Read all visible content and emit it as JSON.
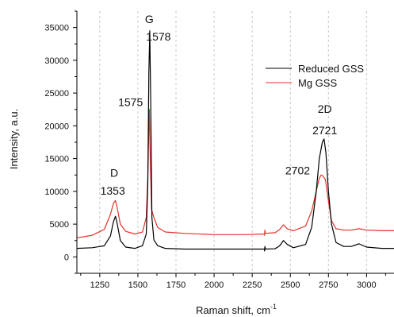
{
  "chart_data": {
    "type": "line",
    "title": "",
    "xlabel": "Raman shift, cm",
    "xlabel_superscript": "-1",
    "ylabel": "Intensity, a.u.",
    "xlim": [
      1100,
      3180
    ],
    "ylim": [
      -2500,
      37500
    ],
    "x_ticks": [
      1250,
      1500,
      1750,
      2000,
      2250,
      2500,
      2750,
      3000
    ],
    "y_ticks": [
      0,
      5000,
      10000,
      15000,
      20000,
      25000,
      30000,
      35000
    ],
    "grid": "vertical dashed",
    "legend_position": "top-right",
    "series": [
      {
        "name": "Reduced GSS",
        "color": "#000000",
        "x": [
          1100,
          1200,
          1280,
          1320,
          1340,
          1353,
          1365,
          1385,
          1420,
          1480,
          1530,
          1555,
          1565,
          1572,
          1578,
          1584,
          1592,
          1605,
          1630,
          1680,
          1800,
          2000,
          2200,
          2330,
          2331,
          2333,
          2336,
          2400,
          2430,
          2455,
          2480,
          2520,
          2600,
          2640,
          2670,
          2690,
          2710,
          2721,
          2733,
          2750,
          2770,
          2800,
          2850,
          2900,
          2950,
          3000,
          3100,
          3180
        ],
        "values": [
          1300,
          1400,
          1700,
          3200,
          5400,
          6200,
          5000,
          2500,
          1500,
          1300,
          1700,
          3500,
          11000,
          28000,
          34500,
          24000,
          6000,
          2600,
          1700,
          1300,
          1200,
          1200,
          1200,
          1200,
          900,
          1600,
          1200,
          1250,
          1700,
          2500,
          1900,
          1400,
          1900,
          4500,
          10000,
          15000,
          17500,
          18000,
          16000,
          10000,
          5000,
          2200,
          1600,
          1600,
          2000,
          1500,
          1300,
          1300
        ]
      },
      {
        "name": "Mg GSS",
        "color": "#e8302a",
        "x": [
          1100,
          1200,
          1280,
          1320,
          1340,
          1353,
          1365,
          1385,
          1420,
          1480,
          1530,
          1555,
          1565,
          1572,
          1575,
          1581,
          1590,
          1605,
          1630,
          1680,
          1800,
          2000,
          2200,
          2330,
          2331,
          2333,
          2336,
          2400,
          2430,
          2455,
          2480,
          2520,
          2600,
          2640,
          2670,
          2690,
          2702,
          2712,
          2730,
          2750,
          2770,
          2800,
          2850,
          2900,
          2950,
          3000,
          3100,
          3180
        ],
        "values": [
          2900,
          3300,
          4200,
          6500,
          8200,
          8600,
          7400,
          5000,
          3900,
          3500,
          3800,
          6000,
          12000,
          20000,
          22500,
          15000,
          7200,
          6000,
          4500,
          3800,
          3600,
          3400,
          3400,
          3500,
          3300,
          4100,
          3600,
          3700,
          4200,
          4900,
          4300,
          4000,
          4700,
          7000,
          10000,
          12000,
          12500,
          12400,
          11800,
          8500,
          5500,
          4300,
          4100,
          4100,
          4300,
          4100,
          4000,
          4000
        ]
      }
    ],
    "annotations": [
      {
        "text": "G",
        "x": 1575,
        "y": 35700
      },
      {
        "text": "1578",
        "x": 1635,
        "y": 33000
      },
      {
        "text": "1575",
        "x": 1452,
        "y": 23000
      },
      {
        "text": "D",
        "x": 1345,
        "y": 12200
      },
      {
        "text": "1353",
        "x": 1335,
        "y": 9500
      },
      {
        "text": "2D",
        "x": 2726,
        "y": 22000
      },
      {
        "text": "2721",
        "x": 2726,
        "y": 18700
      },
      {
        "text": "2702",
        "x": 2548,
        "y": 12600
      }
    ]
  }
}
